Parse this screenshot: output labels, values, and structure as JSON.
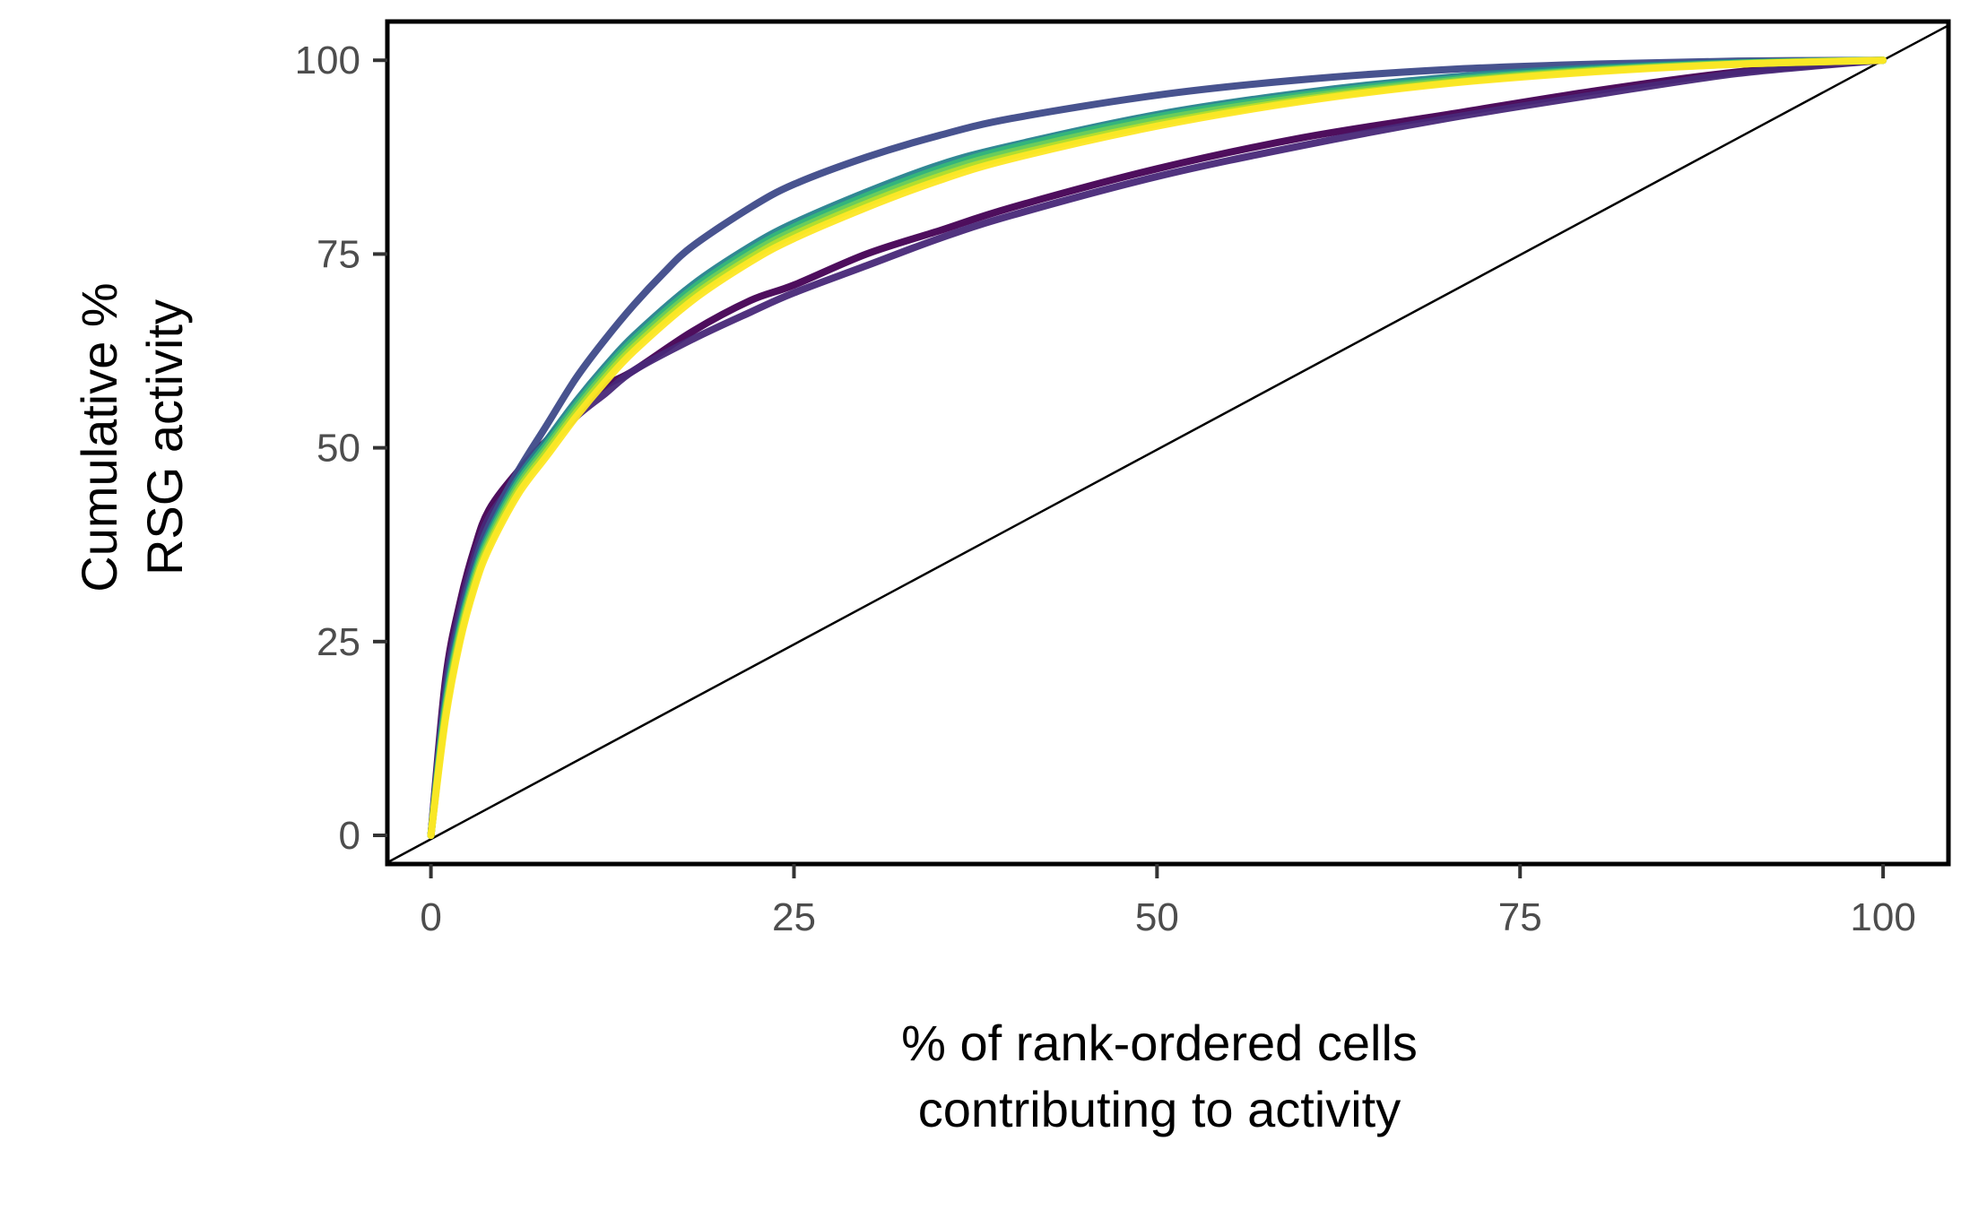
{
  "chart_data": {
    "type": "line",
    "title": "",
    "xlabel_lines": [
      "% of rank-ordered cells",
      "contributing to activity"
    ],
    "ylabel_lines": [
      "Cumulative %",
      "RSG activity"
    ],
    "xlim": [
      -3,
      104.5
    ],
    "ylim": [
      -3.7,
      105
    ],
    "x_ticks": [
      0,
      25,
      50,
      75,
      100
    ],
    "y_ticks": [
      0,
      25,
      50,
      75,
      100
    ],
    "x_tick_labels": [
      "0",
      "25",
      "50",
      "75",
      "100"
    ],
    "y_tick_labels": [
      "0",
      "25",
      "50",
      "75",
      "100"
    ],
    "grid": false,
    "legend": "none",
    "reference_line": {
      "name": "equality-line",
      "color": "#000000",
      "x": [
        -3.2,
        100,
        104.5
      ],
      "y": [
        -3.7,
        100,
        104.5
      ]
    },
    "series": [
      {
        "name": "curve-1",
        "color": "#440154",
        "x": [
          0,
          1,
          2,
          3,
          4,
          6,
          8,
          10,
          12,
          14,
          18,
          22,
          25,
          30,
          35,
          40,
          50,
          60,
          70,
          80,
          90,
          100
        ],
        "y": [
          0,
          20,
          30,
          37,
          42,
          47,
          51,
          55,
          58,
          60,
          65,
          69,
          71,
          75,
          78,
          81,
          86,
          90,
          93,
          96,
          98.5,
          100
        ]
      },
      {
        "name": "curve-2",
        "color": "#482878",
        "x": [
          0,
          1,
          2,
          3,
          4,
          6,
          8,
          10,
          12,
          14,
          18,
          22,
          25,
          30,
          35,
          40,
          50,
          60,
          70,
          80,
          90,
          100
        ],
        "y": [
          0,
          19,
          29,
          36,
          41,
          46,
          50,
          54,
          57,
          60,
          64,
          67.5,
          70,
          73.5,
          77,
          80,
          85,
          89,
          92.5,
          95.5,
          98.3,
          100
        ]
      },
      {
        "name": "curve-3",
        "color": "#3e4a89",
        "x": [
          0,
          1,
          2,
          3,
          4,
          6,
          8,
          10,
          12,
          14,
          16,
          18,
          22,
          25,
          30,
          35,
          40,
          50,
          60,
          70,
          80,
          90,
          100
        ],
        "y": [
          0,
          18,
          28,
          35,
          40,
          47,
          53,
          59,
          64,
          68.5,
          72.5,
          76,
          81,
          84,
          87.5,
          90.3,
          92.5,
          95.5,
          97.5,
          98.8,
          99.5,
          99.9,
          100
        ]
      },
      {
        "name": "curve-4",
        "color": "#26828e",
        "x": [
          0,
          1,
          2,
          3,
          4,
          6,
          8,
          10,
          12,
          14,
          18,
          22,
          25,
          30,
          35,
          40,
          50,
          60,
          70,
          80,
          90,
          100
        ],
        "y": [
          0,
          17,
          27,
          34,
          39,
          46,
          51,
          56,
          60.5,
          64.5,
          71,
          76,
          79,
          83,
          86.5,
          89,
          93,
          95.8,
          97.8,
          99,
          99.7,
          100
        ]
      },
      {
        "name": "curve-5",
        "color": "#35b779",
        "x": [
          0,
          1,
          2,
          3,
          4,
          6,
          8,
          10,
          12,
          14,
          18,
          22,
          25,
          30,
          35,
          40,
          50,
          60,
          70,
          80,
          90,
          100
        ],
        "y": [
          0,
          16.5,
          26.5,
          33.5,
          38.5,
          45.5,
          50.5,
          55.5,
          60,
          64,
          70.5,
          75.5,
          78.5,
          82.5,
          86,
          88.7,
          92.7,
          95.5,
          97.5,
          98.8,
          99.6,
          100
        ]
      },
      {
        "name": "curve-6",
        "color": "#6ece58",
        "x": [
          0,
          1,
          2,
          3,
          4,
          6,
          8,
          10,
          12,
          14,
          18,
          22,
          25,
          30,
          35,
          40,
          50,
          60,
          70,
          80,
          90,
          100
        ],
        "y": [
          0,
          16,
          26,
          33,
          38,
          45,
          50,
          55,
          59.5,
          63.5,
          70,
          75,
          78,
          82,
          85.5,
          88.2,
          92.3,
          95.2,
          97.3,
          98.7,
          99.6,
          100
        ]
      },
      {
        "name": "curve-7",
        "color": "#b5de2b",
        "x": [
          0,
          1,
          2,
          3,
          4,
          6,
          8,
          10,
          12,
          14,
          18,
          22,
          25,
          30,
          35,
          40,
          50,
          60,
          70,
          80,
          90,
          100
        ],
        "y": [
          0,
          15.5,
          25.5,
          32.5,
          37.5,
          44.5,
          49.5,
          54.5,
          59,
          63,
          69.5,
          74.5,
          77.5,
          81.5,
          85,
          87.7,
          91.8,
          94.9,
          97.1,
          98.6,
          99.5,
          100
        ]
      },
      {
        "name": "curve-8",
        "color": "#fde725",
        "x": [
          0,
          1,
          2,
          3,
          4,
          6,
          8,
          10,
          12,
          14,
          18,
          22,
          25,
          30,
          35,
          40,
          50,
          60,
          70,
          80,
          90,
          100
        ],
        "y": [
          0,
          15,
          25,
          32,
          37,
          44,
          49,
          54,
          58.5,
          62.5,
          69,
          74,
          77,
          81,
          84.5,
          87.3,
          91.5,
          94.7,
          97,
          98.5,
          99.5,
          100
        ]
      }
    ]
  }
}
